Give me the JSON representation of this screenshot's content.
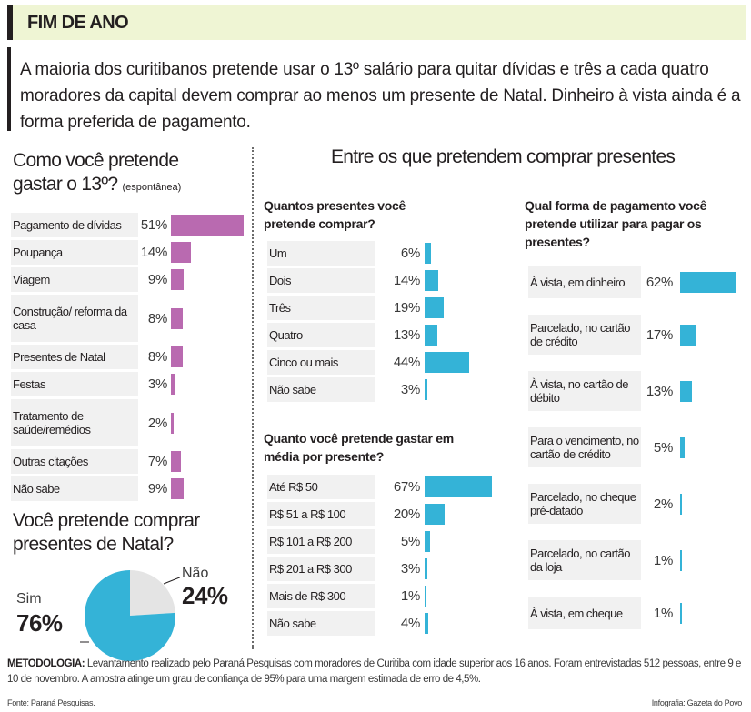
{
  "header": {
    "title": "FIM DE ANO"
  },
  "lede": "A maioria dos curitibanos pretende usar o 13º salário para quitar dívidas e três a cada quatro moradores da capital devem comprar ao menos um presente de Natal. Dinheiro à vista ainda é a forma preferida de pagamento.",
  "left": {
    "title_line1": "Como você pretende",
    "title_line2": "gastar o 13º?",
    "title_note": "(espontânea)"
  },
  "right_title": "Entre os que pretendem comprar presentes",
  "footer": {
    "method_label": "METODOLOGIA:",
    "method_text": "Levantamento realizado pelo Paraná Pesquisas com moradores de Curitiba com idade superior aos 16 anos. Foram entrevistadas 512 pessoas, entre 9 e 10 de novembro. A amostra atinge um grau de confiança de 95% para uma margem estimada de erro de 4,5%.",
    "source": "Fonte: Paraná Pesquisas.",
    "credit": "Infografia: Gazeta do Povo"
  },
  "colors": {
    "pink": "#b96ab0",
    "blue": "#34b3d7",
    "label_bg": "#f1f1f1",
    "pie_rest": "#e4e4e4"
  },
  "chart_data": [
    {
      "type": "bar",
      "id": "gastar13",
      "title": "Como você pretende gastar o 13º? (espontânea)",
      "categories": [
        "Pagamento de dívidas",
        "Poupança",
        "Viagem",
        "Construção/ reforma da casa",
        "Presentes de Natal",
        "Festas",
        "Tratamento de saúde/remédios",
        "Outras citações",
        "Não sabe"
      ],
      "values": [
        51,
        14,
        9,
        8,
        8,
        3,
        2,
        7,
        9
      ],
      "labels": [
        "51%",
        "14%",
        "9%",
        "8%",
        "8%",
        "3%",
        "2%",
        "7%",
        "9%"
      ],
      "max": 51
    },
    {
      "type": "pie",
      "id": "presentes",
      "title": "Você pretende comprar presentes de Natal?",
      "categories": [
        "Sim",
        "Não"
      ],
      "values": [
        76,
        24
      ],
      "labels": [
        "76%",
        "24%"
      ]
    },
    {
      "type": "bar",
      "id": "quantos",
      "title": "Quantos presentes você pretende comprar?",
      "categories": [
        "Um",
        "Dois",
        "Três",
        "Quatro",
        "Cinco ou mais",
        "Não sabe"
      ],
      "values": [
        6,
        14,
        19,
        13,
        44,
        3
      ],
      "labels": [
        "6%",
        "14%",
        "19%",
        "13%",
        "44%",
        "3%"
      ],
      "max": 67
    },
    {
      "type": "bar",
      "id": "gastar_media",
      "title": "Quanto você pretende gastar em média por presente?",
      "categories": [
        "Até R$ 50",
        "R$ 51 a R$ 100",
        "R$ 101 a R$ 200",
        "R$ 201 a R$ 300",
        "Mais de R$ 300",
        "Não sabe"
      ],
      "values": [
        67,
        20,
        5,
        3,
        1,
        4
      ],
      "labels": [
        "67%",
        "20%",
        "5%",
        "3%",
        "1%",
        "4%"
      ],
      "max": 67
    },
    {
      "type": "bar",
      "id": "pagamento",
      "title": "Qual forma de pagamento você pretende utilizar para pagar os presentes?",
      "categories": [
        "À vista, em dinheiro",
        "Parcelado, no cartão de crédito",
        "À vista, no cartão de débito",
        "Para o vencimento, no cartão de crédito",
        "Parcelado, no cheque pré-datado",
        "Parcelado, no cartão da loja",
        "À vista, em cheque"
      ],
      "values": [
        62,
        17,
        13,
        5,
        2,
        1,
        1
      ],
      "labels": [
        "62%",
        "17%",
        "13%",
        "5%",
        "2%",
        "1%",
        "1%"
      ],
      "max": 62
    }
  ]
}
